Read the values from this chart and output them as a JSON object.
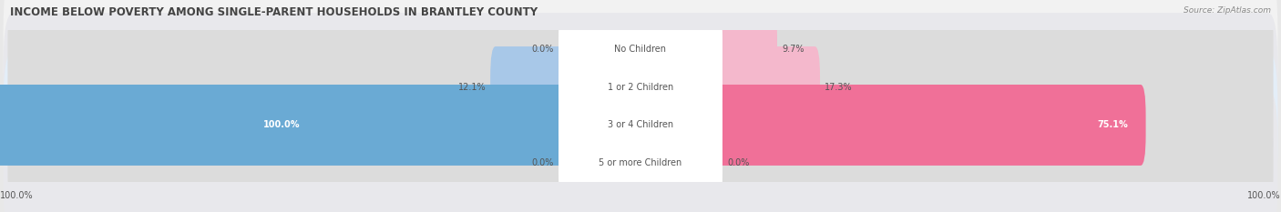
{
  "title": "INCOME BELOW POVERTY AMONG SINGLE-PARENT HOUSEHOLDS IN BRANTLEY COUNTY",
  "source": "Source: ZipAtlas.com",
  "categories": [
    "No Children",
    "1 or 2 Children",
    "3 or 4 Children",
    "5 or more Children"
  ],
  "single_father": [
    0.0,
    12.1,
    100.0,
    0.0
  ],
  "single_mother": [
    9.7,
    17.3,
    75.1,
    0.0
  ],
  "father_color_normal": "#a8c8e8",
  "father_color_highlight": "#6aaad4",
  "mother_color_normal": "#f4b8cc",
  "mother_color_highlight": "#f07098",
  "row_bg_light": "#f2f2f2",
  "row_bg_dark": "#e8e8ec",
  "row_bg_highlight": "#e4eef8",
  "bar_bg_color": "#dcdcdc",
  "label_bg_color": "#ffffff",
  "bg_color": "#e8e8e8",
  "title_color": "#444444",
  "source_color": "#888888",
  "label_color": "#555555",
  "value_color_normal": "#555555",
  "value_color_highlight": "#ffffff",
  "axis_label": "100.0%",
  "title_fontsize": 8.5,
  "source_fontsize": 6.5,
  "cat_fontsize": 7.0,
  "val_fontsize": 7.0,
  "legend_fontsize": 7.5,
  "bar_height": 0.52,
  "figsize": [
    14.06,
    2.33
  ],
  "dpi": 100
}
